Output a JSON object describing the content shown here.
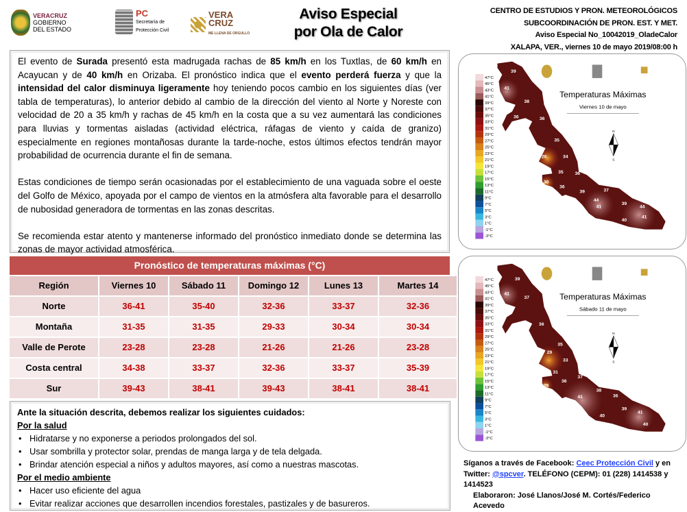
{
  "header": {
    "logos": [
      {
        "line1": "VERACRUZ",
        "line2": "GOBIERNO",
        "line3": "DEL ESTADO"
      },
      {
        "line1": "PC",
        "line2": "Secretaría de",
        "line3": "Protección Civil"
      },
      {
        "line1": "VERA",
        "line2": "CRUZ",
        "line3": "ME LLENA DE ORGULLO"
      }
    ],
    "title_line1": "Aviso Especial",
    "title_line2": "por Ola de Calor",
    "info": [
      "CENTRO DE ESTUDIOS Y PRON. METEOROLÓGICOS",
      "SUBCOORDINACIÓN DE PRON.  EST. Y MET.",
      "Aviso Especial No_10042019_OladeCalor",
      "XALAPA, VER., viernes 10 de mayo 2019/08:00 h"
    ]
  },
  "paragraphs": [
    [
      {
        "t": "El evento de "
      },
      {
        "t": "Surada",
        "b": true
      },
      {
        "t": " presentó esta madrugada rachas de "
      },
      {
        "t": "85 km/h",
        "b": true
      },
      {
        "t": " en los Tuxtlas, de "
      },
      {
        "t": "60 km/h",
        "b": true
      },
      {
        "t": " en Acayucan y de "
      },
      {
        "t": "40 km/h",
        "b": true
      },
      {
        "t": " en Orizaba. El pronóstico indica que el "
      },
      {
        "t": "evento perderá fuerza",
        "b": true
      },
      {
        "t": " y que la "
      },
      {
        "t": "intensidad del calor disminuya ligeramente",
        "b": true
      },
      {
        "t": " hoy teniendo pocos cambio en los siguientes días (ver tabla de temperaturas), lo anterior debido al cambio de la dirección del viento al Norte y Noreste con velocidad de 20 a 35 km/h y rachas de 45 km/h en la costa que a su vez aumentará las condiciones para lluvias y tormentas aisladas (actividad eléctrica, ráfagas de viento y caída de granizo) especialmente en regiones montañosas durante la tarde-noche, estos últimos efectos tendrán mayor probabilidad de ocurrencia durante el fin de semana."
      }
    ],
    [
      {
        "t": "Estas condiciones de tiempo serán ocasionadas por el establecimiento de una vaguada sobre el oeste del Golfo de México, apoyada por el campo de vientos en la atmósfera alta favorable para el desarrollo de nubosidad generadora de tormentas en las zonas descritas."
      }
    ],
    [
      {
        "t": "Se recomienda estar atento y mantenerse informado del pronóstico inmediato donde se determina las zonas de mayor actividad atmosférica."
      }
    ]
  ],
  "table": {
    "title": "Pronóstico de temperaturas máximas (°C)",
    "headers": [
      "Región",
      "Viernes 10",
      "Sábado 11",
      "Domingo 12",
      "Lunes 13",
      "Martes 14"
    ],
    "rows": [
      [
        "Norte",
        "36-41",
        "35-40",
        "32-36",
        "33-37",
        "32-36"
      ],
      [
        "Montaña",
        "31-35",
        "31-35",
        "29-33",
        "30-34",
        "30-34"
      ],
      [
        "Valle de Perote",
        "23-28",
        "23-28",
        "21-26",
        "21-26",
        "23-28"
      ],
      [
        "Costa central",
        "34-38",
        "33-37",
        "32-36",
        "33-37",
        "35-39"
      ],
      [
        "Sur",
        "39-43",
        "38-41",
        "39-43",
        "38-41",
        "38-41"
      ]
    ]
  },
  "care": {
    "intro": "Ante la situación descrita, debemos realizar los siguientes cuidados:",
    "health_title": "Por la salud",
    "health": [
      "Hidratarse y no exponerse a periodos prolongados del sol.",
      "Usar sombrilla y protector solar, prendas de manga larga y de tela delgada.",
      "Brindar atención especial a niños y adultos mayores, así como a nuestras mascotas."
    ],
    "env_title": "Por el medio ambiente",
    "env": [
      "Hacer uso eficiente del agua",
      "Evitar realizar acciones que desarrollen incendios forestales, pastizales y de basureros."
    ]
  },
  "maps": [
    {
      "title": "Temperaturas Máximas",
      "subtitle": "Viernes 10 de mayo",
      "labels": [
        "39",
        "41",
        "38",
        "36",
        "36",
        "35",
        "26",
        "34",
        "35",
        "36",
        "30",
        "36",
        "39",
        "37",
        "44",
        "41",
        "39",
        "44",
        "41",
        "40"
      ]
    },
    {
      "title": "Temperaturas Máximas",
      "subtitle": "Sábado 11 de mayo",
      "labels": [
        "39",
        "41",
        "37",
        "36",
        "35",
        "29",
        "33",
        "31",
        "37",
        "36",
        "28",
        "38",
        "41",
        "36",
        "39",
        "40",
        "41",
        "40",
        "39"
      ]
    }
  ],
  "legend": [
    "47°C",
    "45°C",
    "43°C",
    "41°C",
    "39°C",
    "37°C",
    "35°C",
    "33°C",
    "31°C",
    "29°C",
    "27°C",
    "25°C",
    "23°C",
    "21°C",
    "19°C",
    "17°C",
    "15°C",
    "13°C",
    "11°C",
    "9°C",
    "7°C",
    "5°C",
    "3°C",
    "1°C",
    "-1°C",
    "-3°C"
  ],
  "legend_colors": [
    "#f2d9dc",
    "#e3b8bb",
    "#c98f92",
    "#9c5a5a",
    "#2a0606",
    "#4a0a0a",
    "#6a0c0c",
    "#8e1111",
    "#a8180f",
    "#b3330d",
    "#c65a10",
    "#d9831a",
    "#e8a622",
    "#f2c82a",
    "#f5e53a",
    "#c6e03a",
    "#6cc23a",
    "#2f9c2f",
    "#1a6b2a",
    "#123f5c",
    "#0e4f9a",
    "#1a86c8",
    "#3ab7e0",
    "#8fd3ee",
    "#b7a6e0",
    "#9a55d6"
  ],
  "footer": {
    "l1": "Síganos a través de Facebook: ",
    "fb": "Ceec Protección Civil",
    "l2": "  y en Twitter: ",
    "tw": "@spcver",
    "l3": ".  TELÉFONO (CEPM):  01 (228) 1414538 y 1414523",
    "authors": "Elaboraron: José Llanos/José M. Cortés/Federico Acevedo"
  },
  "compass": {
    "n": "N",
    "s": "S"
  }
}
